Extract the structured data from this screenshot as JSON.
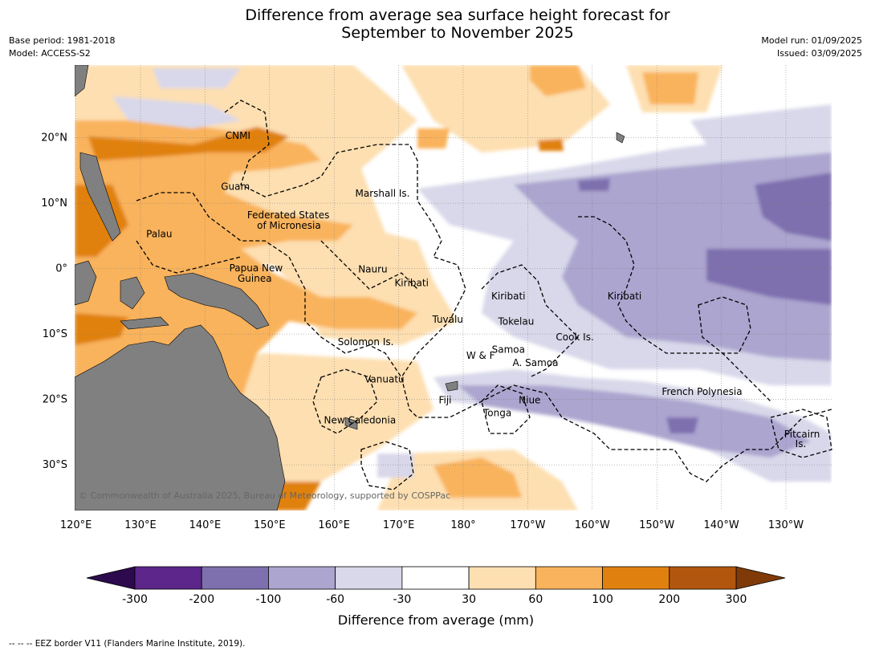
{
  "title_line1": "Difference from average sea surface height forecast for",
  "title_line2": "September to November 2025",
  "meta_left": {
    "base_period": "Base period: 1981-2018",
    "model": "Model: ACCESS-S2"
  },
  "meta_right": {
    "model_run": "Model run: 01/09/2025",
    "issued": "Issued: 03/09/2025"
  },
  "lon_ticks": [
    "120°E",
    "130°E",
    "140°E",
    "150°E",
    "160°E",
    "170°E",
    "180°",
    "170°W",
    "160°W",
    "150°W",
    "140°W",
    "130°W"
  ],
  "lat_ticks": [
    "20°N",
    "10°N",
    "0°",
    "10°S",
    "20°S",
    "30°S"
  ],
  "labels": [
    {
      "text": "CNMI",
      "lon": 145.1,
      "lat": 20.3
    },
    {
      "text": "Guam",
      "lon": 144.7,
      "lat": 12.5
    },
    {
      "text": "Marshall Is.",
      "lon": 167.5,
      "lat": 11.5
    },
    {
      "text": "Federated States",
      "lon": 152.9,
      "lat": 8.2
    },
    {
      "text": "of Micronesia",
      "lon": 153.0,
      "lat": 6.6
    },
    {
      "text": "Palau",
      "lon": 132.9,
      "lat": 5.3
    },
    {
      "text": "Papua New",
      "lon": 147.9,
      "lat": 0.1
    },
    {
      "text": "Guinea",
      "lon": 147.7,
      "lat": -1.5
    },
    {
      "text": "Nauru",
      "lon": 166.0,
      "lat": -0.1
    },
    {
      "text": "Kiribati",
      "lon": 172.0,
      "lat": -2.2
    },
    {
      "text": "Kiribati",
      "lon": -173.0,
      "lat": -4.2
    },
    {
      "text": "Kiribati",
      "lon": -155.0,
      "lat": -4.2
    },
    {
      "text": "Tuvalu",
      "lon": 177.6,
      "lat": -7.8
    },
    {
      "text": "Tokelau",
      "lon": -171.8,
      "lat": -8.1
    },
    {
      "text": "Solomon Is.",
      "lon": 164.9,
      "lat": -11.2
    },
    {
      "text": "Cook Is.",
      "lon": -162.7,
      "lat": -10.5
    },
    {
      "text": "Samoa",
      "lon": -173.0,
      "lat": -12.4
    },
    {
      "text": "W & F",
      "lon": -177.3,
      "lat": -13.3
    },
    {
      "text": "A. Samoa",
      "lon": -168.8,
      "lat": -14.4
    },
    {
      "text": "Vanuatu",
      "lon": 167.8,
      "lat": -16.9
    },
    {
      "text": "Fiji",
      "lon": 177.2,
      "lat": -20.1
    },
    {
      "text": "Niue",
      "lon": -169.7,
      "lat": -20.1
    },
    {
      "text": "French Polynesia",
      "lon": -143.0,
      "lat": -18.8
    },
    {
      "text": "Tonga",
      "lon": -174.7,
      "lat": -22.1
    },
    {
      "text": "New Caledonia",
      "lon": 164.0,
      "lat": -23.2
    },
    {
      "text": "Pitcairn",
      "lon": -127.5,
      "lat": -25.3
    },
    {
      "text": "Is.",
      "lon": -127.7,
      "lat": -26.8
    }
  ],
  "copyright": "© Commonwealth of Australia 2025, Bureau of Meteorology, supported by COSPPac",
  "colorbar": {
    "label": "Difference from average (mm)",
    "bounds": [
      "-300",
      "-200",
      "-100",
      "-60",
      "-30",
      "30",
      "60",
      "100",
      "200",
      "300"
    ],
    "colors": [
      "#5c268a",
      "#7e70ae",
      "#aca5cf",
      "#d8d8ea",
      "#ffffff",
      "#fddfb1",
      "#f9b35c",
      "#e0810f",
      "#b1560e"
    ],
    "under_color": "#2d0a4e",
    "over_color": "#7f3a08"
  },
  "colors": {
    "land": "#808080",
    "eez": "#000000"
  },
  "footnote": "-- -- -- EEZ border V11 (Flanders Marine Institute, 2019)."
}
